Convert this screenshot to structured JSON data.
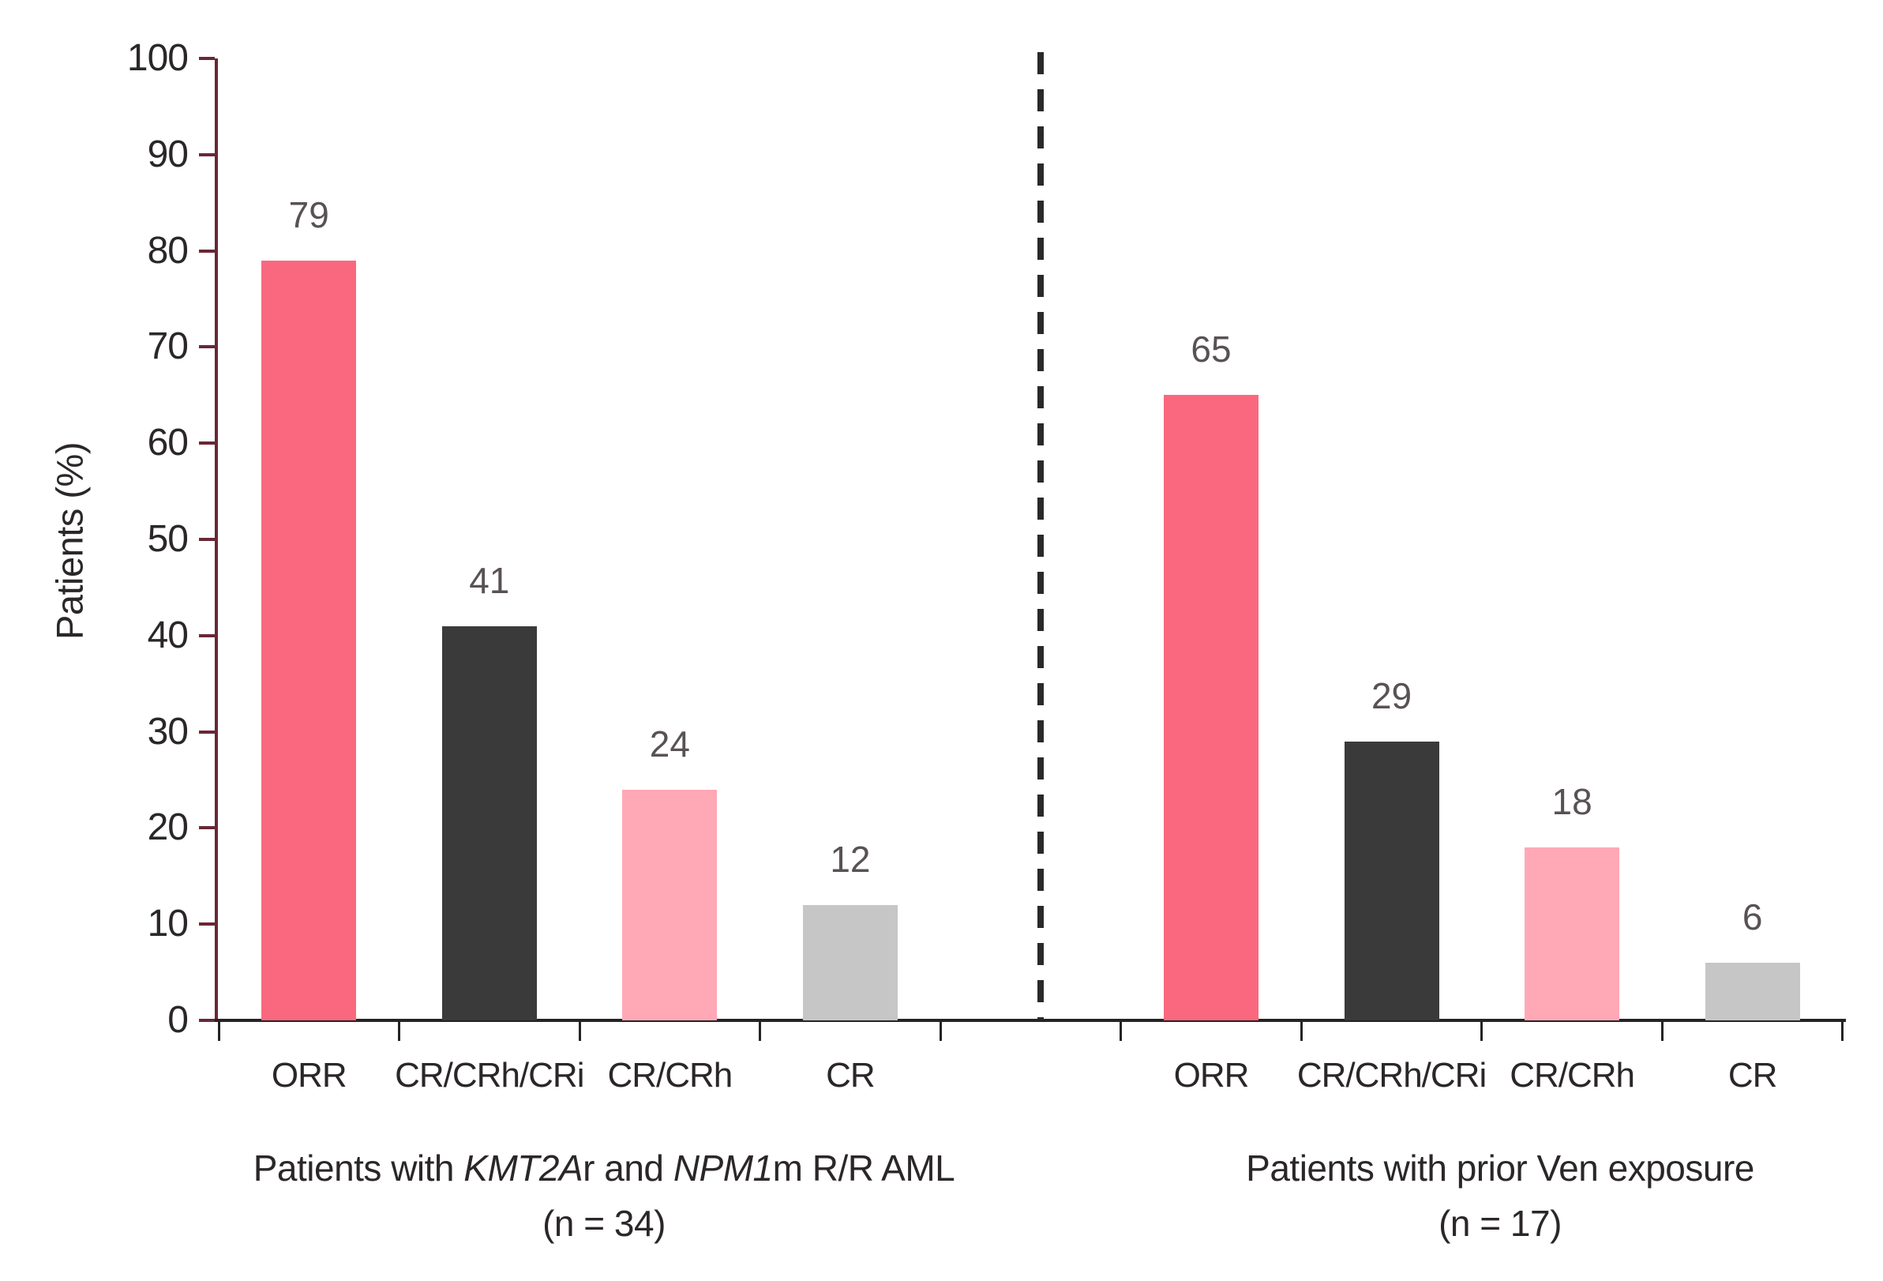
{
  "chart_data": {
    "type": "bar",
    "ylabel": "Patients (%)",
    "ylim": [
      0,
      100
    ],
    "yticks": [
      0,
      10,
      20,
      30,
      40,
      50,
      60,
      70,
      80,
      90,
      100
    ],
    "grid": false,
    "legend": null,
    "categories": [
      "ORR",
      "CR/CRh/CRi",
      "CR/CRh",
      "CR"
    ],
    "category_colors": [
      "#FA687F",
      "#3B3A3B",
      "#FFA8B6",
      "#C7C6C7"
    ],
    "category_color_names": [
      "bar-orr",
      "bar-cr-crh-cri",
      "bar-cr-crh",
      "bar-cr"
    ],
    "groups": [
      {
        "title_parts": [
          {
            "text": "Patients with ",
            "italic": false
          },
          {
            "text": "KMT2A",
            "italic": true
          },
          {
            "text": "r and ",
            "italic": false
          },
          {
            "text": "NPM1",
            "italic": true
          },
          {
            "text": "m R/R AML",
            "italic": false
          }
        ],
        "n_label": "(n = 34)",
        "categories": [
          "ORR",
          "CR/CRh/CRi",
          "CR/CRh",
          "CR"
        ],
        "values": [
          79,
          41,
          24,
          12
        ]
      },
      {
        "title_parts": [
          {
            "text": "Patients with prior Ven exposure",
            "italic": false
          }
        ],
        "n_label": "(n = 17)",
        "categories": [
          "ORR",
          "CR/CRh/CRi",
          "CR/CRh",
          "CR"
        ],
        "values": [
          65,
          29,
          18,
          6
        ]
      }
    ],
    "divider_between_groups": "dashed",
    "colors": {
      "bar_orr": "#FA687F",
      "bar_cr_crh_cri": "#3B3A3B",
      "bar_cr_crh": "#FFA8B6",
      "bar_cr": "#C7C6C7",
      "y_axis": "#682836",
      "x_axis": "#272324",
      "value_label": "#595254",
      "text": "#2B2728",
      "divider": "#2B2829",
      "background": "#FFFFFF"
    }
  }
}
